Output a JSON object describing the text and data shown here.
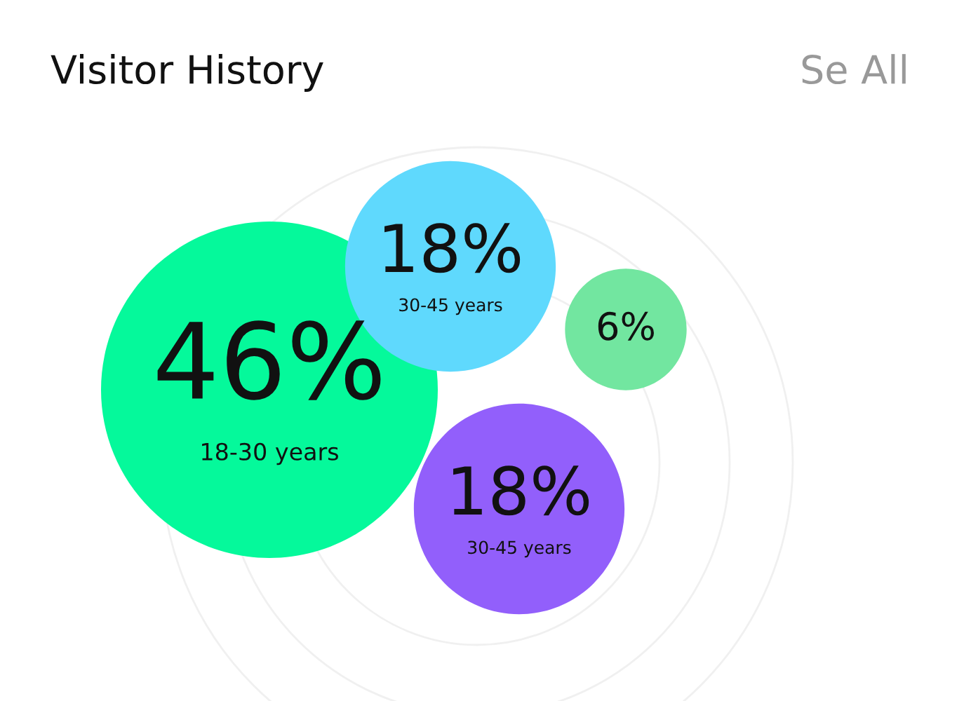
{
  "chart_data": {
    "type": "other",
    "title": "Visitor History",
    "annotations": [
      "Se All"
    ],
    "categories": [
      "18-30 years",
      "30-45 years",
      "30-45 years",
      null
    ],
    "values": [
      46,
      18,
      18,
      6
    ],
    "value_labels": [
      "46%",
      "18%",
      "18%",
      "6%"
    ],
    "colors": [
      "#05f99b",
      "#5fd9fd",
      "#925ffb",
      "#72e6a0"
    ]
  }
}
